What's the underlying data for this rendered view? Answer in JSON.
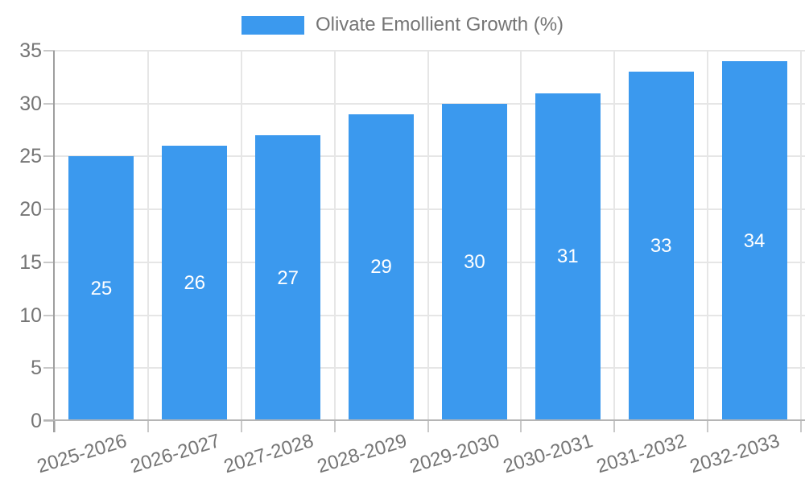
{
  "chart_data": {
    "type": "bar",
    "title": "",
    "legend": {
      "label": "Olivate Emollient Growth (%)",
      "position": "top"
    },
    "categories": [
      "2025-2026",
      "2026-2027",
      "2027-2028",
      "2028-2029",
      "2029-2030",
      "2030-2031",
      "2031-2032",
      "2032-2033"
    ],
    "series": [
      {
        "name": "Olivate Emollient Growth (%)",
        "values": [
          25,
          26,
          27,
          29,
          30,
          31,
          33,
          34
        ]
      }
    ],
    "bar_value_labels": [
      "25",
      "26",
      "27",
      "29",
      "30",
      "31",
      "33",
      "34"
    ],
    "xlabel": "",
    "ylabel": "",
    "ylim": [
      0,
      35
    ],
    "yticks": [
      0,
      5,
      10,
      15,
      20,
      25,
      30,
      35
    ],
    "grid": true,
    "legend_interactive": true,
    "colors": {
      "bar": "#3B99EE",
      "bar_label": "#FFFFFF",
      "axis_text": "#757575",
      "gridline": "#E6E6E6",
      "axis_line": "#9E9E9E",
      "zero_line": "#B5B5B5",
      "tick_mark": "#C9C9C9",
      "background": "#FFFFFF"
    }
  }
}
